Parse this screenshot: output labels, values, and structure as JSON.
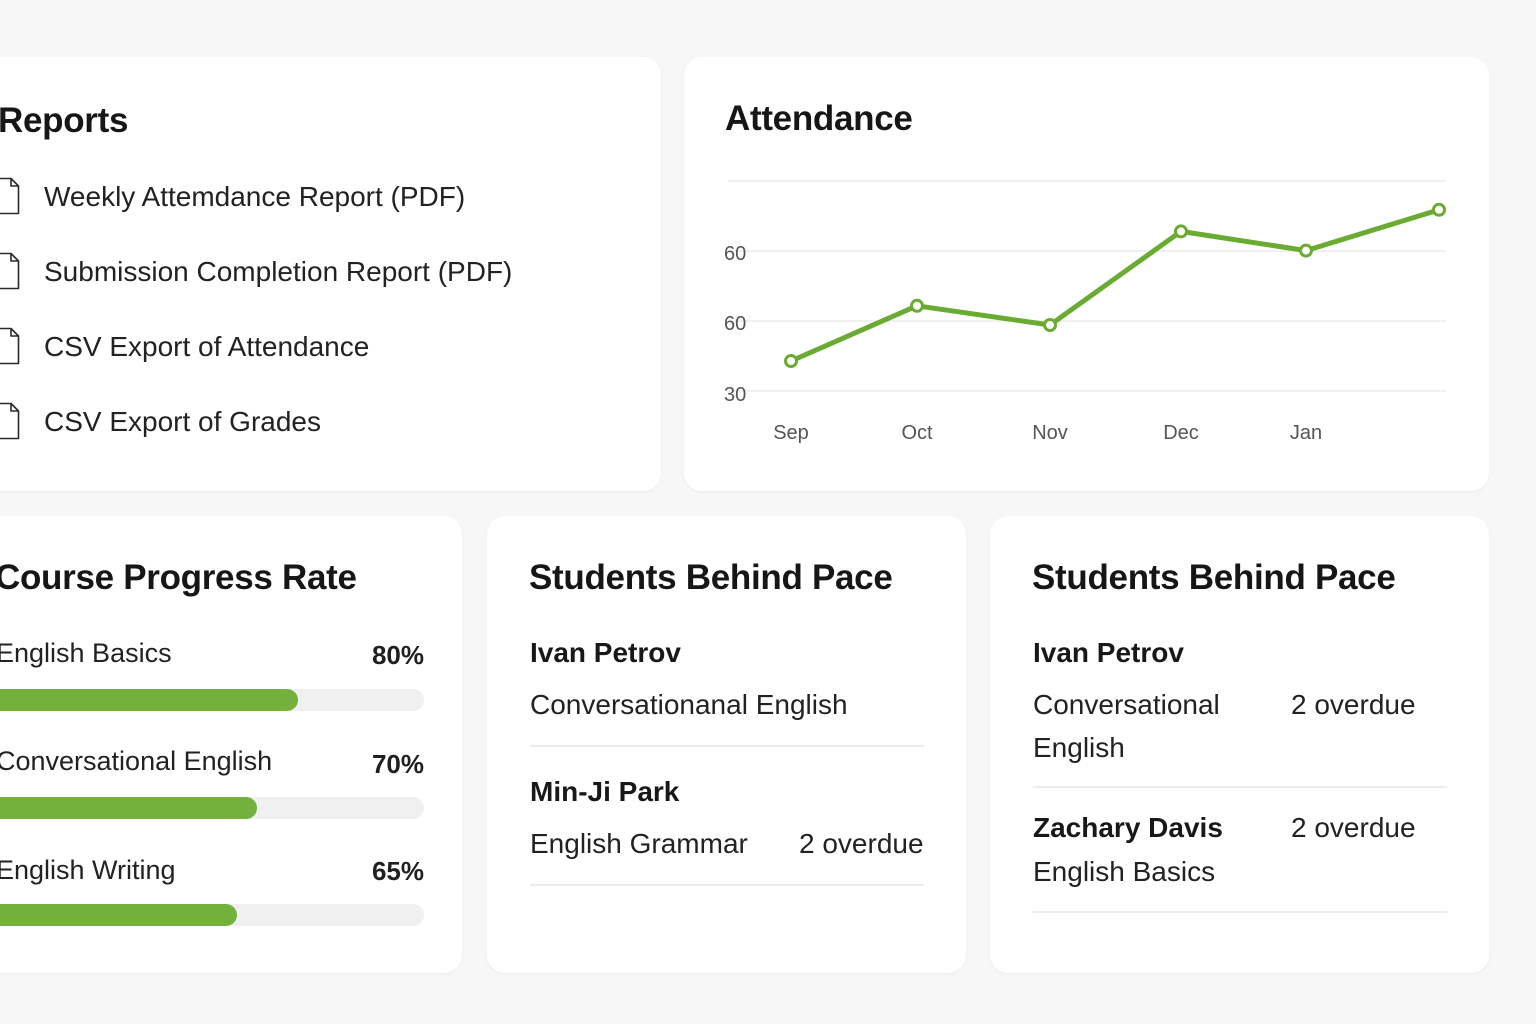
{
  "reports": {
    "title": "Reports",
    "items": [
      {
        "label": "Weekly Attemdance Report (PDF)",
        "icon": "document-icon"
      },
      {
        "label": "Submission Completion Report (PDF)",
        "icon": "document-icon"
      },
      {
        "label": "CSV Export of Attendance",
        "icon": "document-icon"
      },
      {
        "label": "CSV Export of Grades",
        "icon": "document-icon"
      }
    ]
  },
  "attendance": {
    "title": "Attendance",
    "chart_data": {
      "type": "line",
      "categories": [
        "Sep",
        "Oct",
        "Nov",
        "Dec",
        "Jan",
        ""
      ],
      "y_tick_labels": [
        "60",
        "60",
        "30"
      ],
      "values": [
        33,
        56,
        48,
        87,
        79,
        96
      ],
      "grid": true,
      "legend": "none",
      "color": "#6aab32"
    }
  },
  "progress": {
    "title": "Course Progress Rate",
    "accent_color": "#73b13c",
    "courses": [
      {
        "name": "English Basics",
        "percent_label": "80%",
        "value": 80
      },
      {
        "name": "Conversational English",
        "percent_label": "70%",
        "value": 70
      },
      {
        "name": "English Writing",
        "percent_label": "65%",
        "value": 65
      }
    ]
  },
  "behind_left": {
    "title": "Students Behind Pace",
    "students": [
      {
        "name": "Ivan Petrov",
        "course": "Conversationanal English",
        "overdue": ""
      },
      {
        "name": "Min-Ji Park",
        "course": "English Grammar",
        "overdue": "2 overdue"
      }
    ]
  },
  "behind_right": {
    "title": "Students Behind Pace",
    "students": [
      {
        "name": "Ivan Petrov",
        "course": "Conversational English",
        "overdue": "2 overdue"
      },
      {
        "name": "Zachary Davis",
        "course": "English Basics",
        "overdue": "2 overdue"
      }
    ]
  }
}
